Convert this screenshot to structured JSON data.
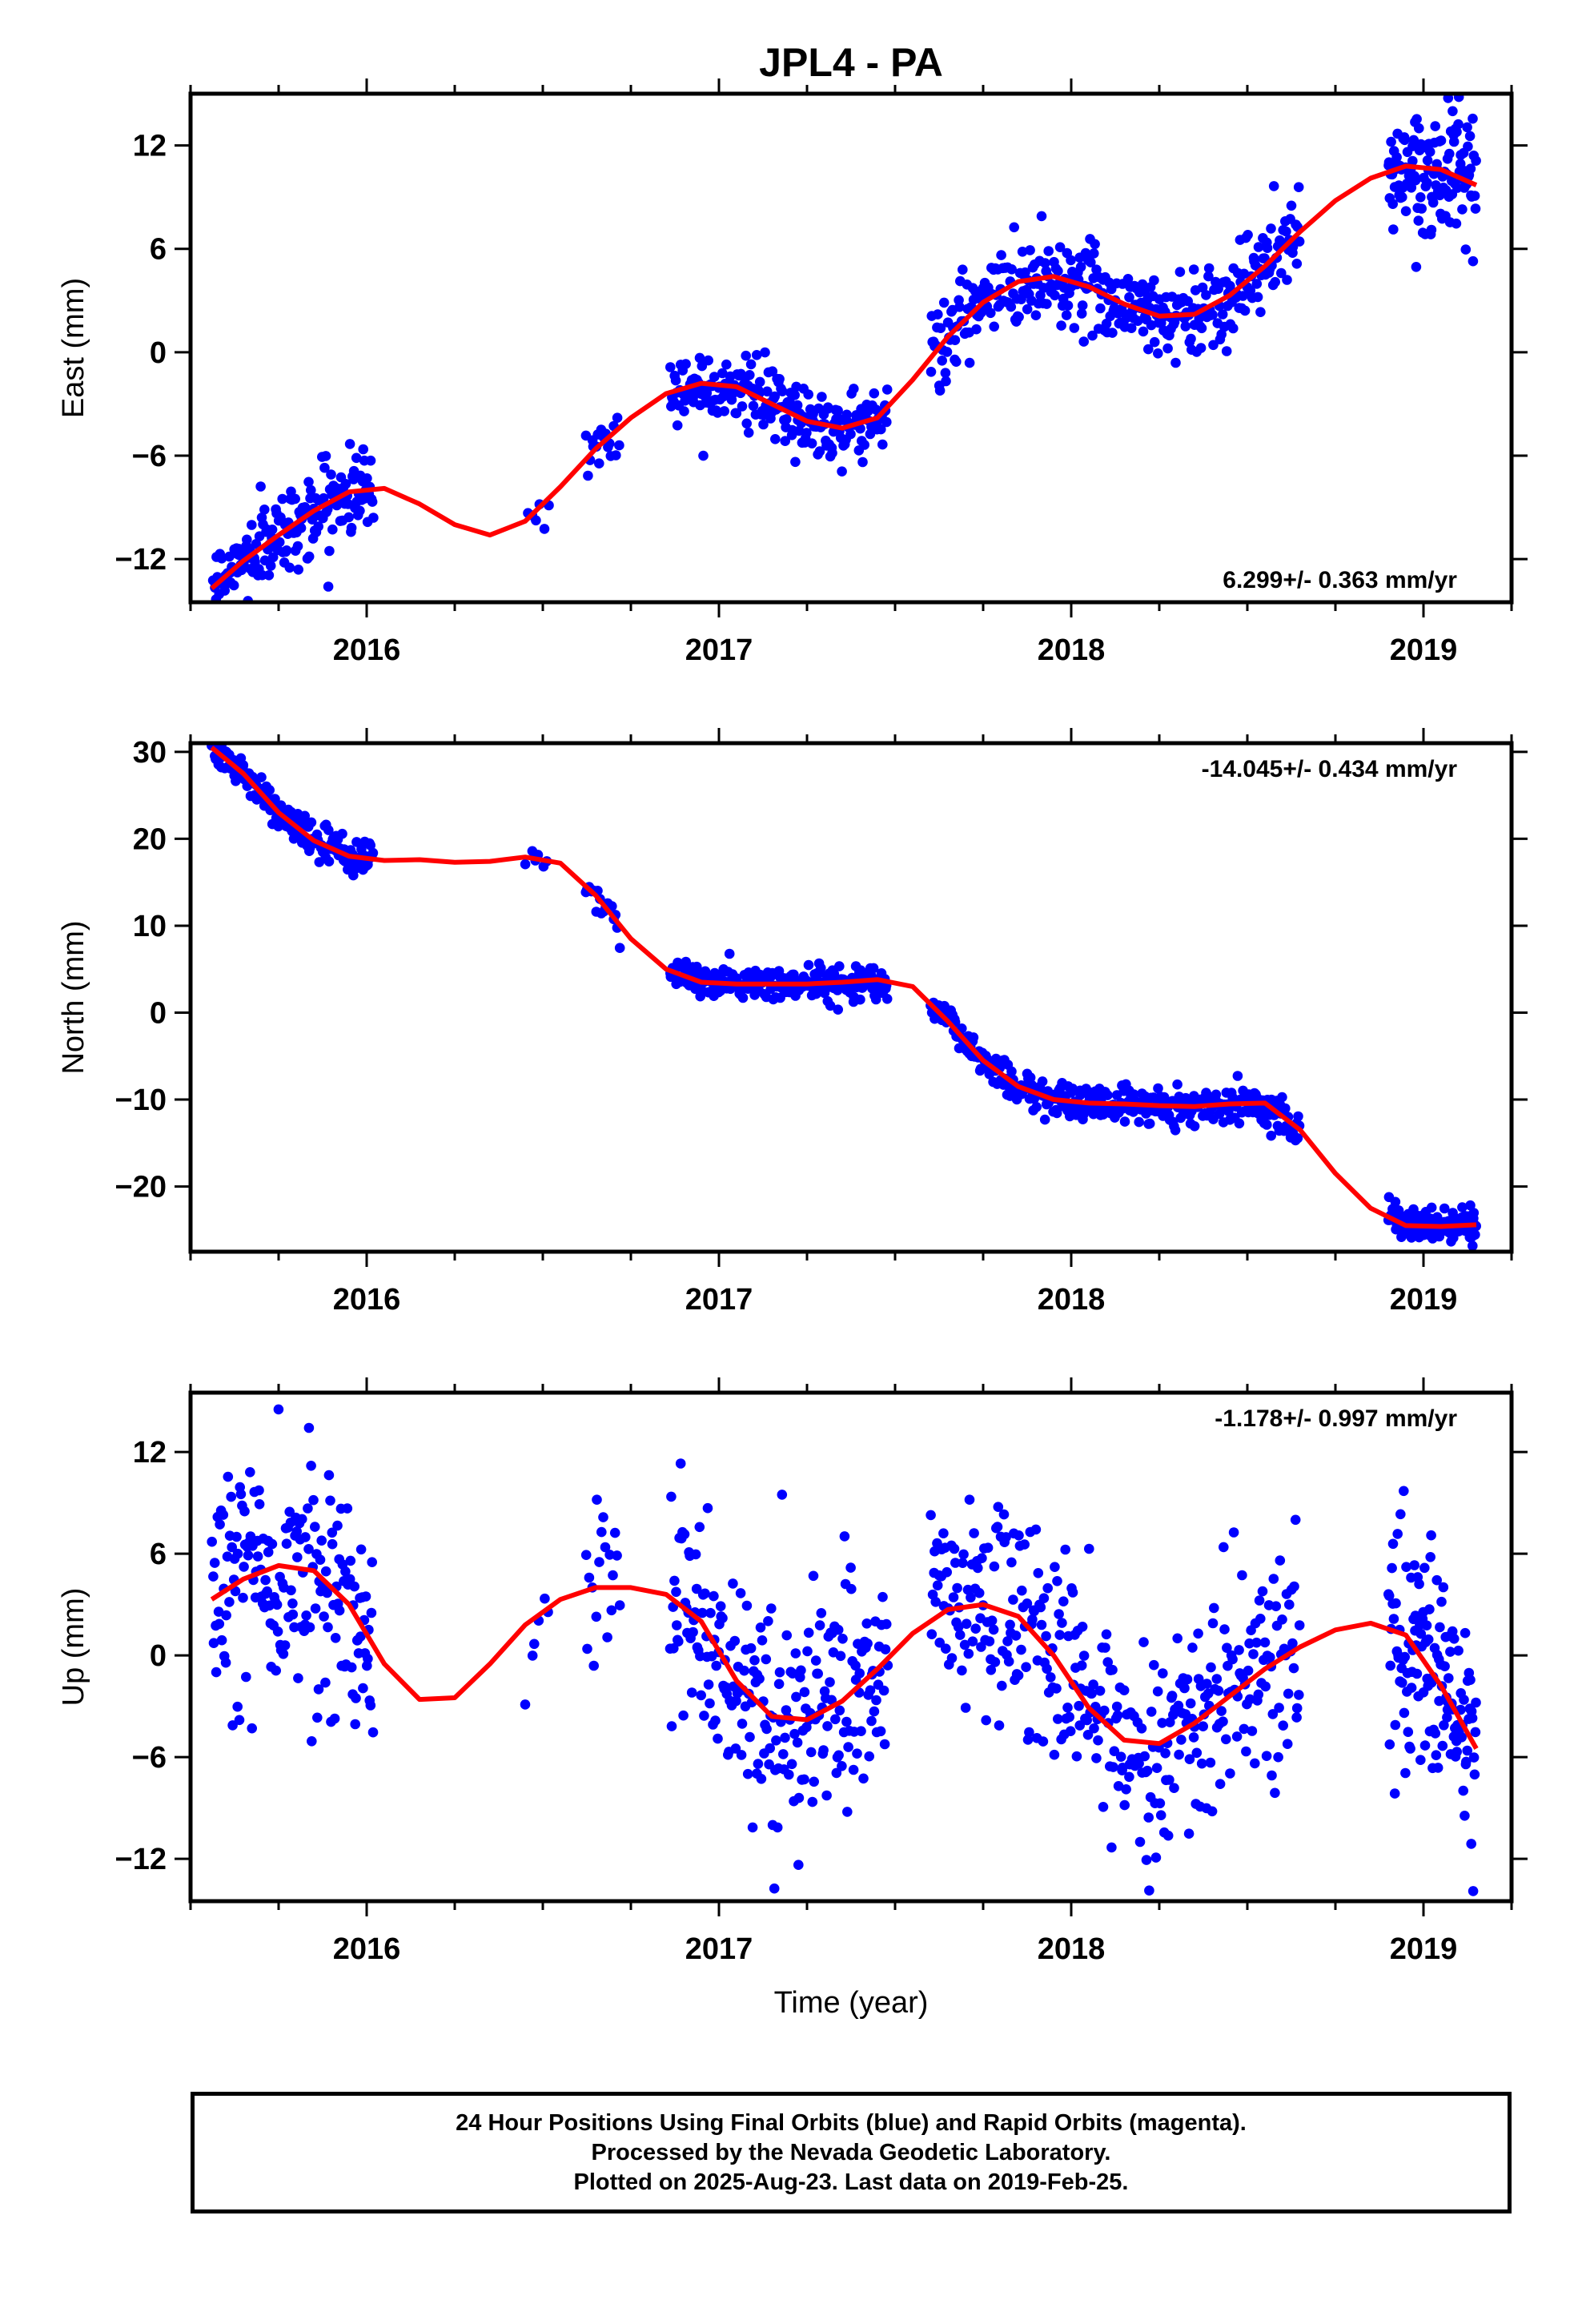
{
  "title": "JPL4 - PA",
  "xlabel": "Time (year)",
  "colors": {
    "final_orbits": "#0000ff",
    "model": "#ff0000",
    "frame": "#000000"
  },
  "footer": {
    "lines": [
      "24 Hour Positions Using Final Orbits (blue) and Rapid Orbits (magenta).",
      "Processed by the Nevada Geodetic Laboratory.",
      "Plotted on 2025-Aug-23. Last data on 2019-Feb-25."
    ]
  },
  "chart_data": [
    {
      "type": "scatter",
      "component": "east",
      "ylabel": "East (mm)",
      "xlim": [
        2015.5,
        2019.25
      ],
      "ylim": [
        -14.5,
        15
      ],
      "xticks": [
        2016,
        2017,
        2018,
        2019
      ],
      "yticks": [
        -12,
        -6,
        0,
        6,
        12
      ],
      "rate_label": "6.299+/- 0.363 mm/yr",
      "model_curve": {
        "x": [
          2015.56,
          2015.65,
          2015.75,
          2015.85,
          2015.95,
          2016.05,
          2016.15,
          2016.25,
          2016.35,
          2016.45,
          2016.55,
          2016.65,
          2016.75,
          2016.85,
          2016.95,
          2017.05,
          2017.15,
          2017.25,
          2017.35,
          2017.45,
          2017.55,
          2017.65,
          2017.75,
          2017.85,
          2017.95,
          2018.05,
          2018.15,
          2018.25,
          2018.35,
          2018.45,
          2018.55,
          2018.65,
          2018.75,
          2018.85,
          2018.95,
          2019.05,
          2019.15
        ],
        "y": [
          -13.7,
          -12.1,
          -10.6,
          -9.2,
          -8.1,
          -7.9,
          -8.8,
          -10.0,
          -10.6,
          -9.8,
          -7.8,
          -5.6,
          -3.8,
          -2.4,
          -1.8,
          -2.0,
          -3.0,
          -4.0,
          -4.4,
          -3.8,
          -1.6,
          0.9,
          2.9,
          4.1,
          4.4,
          3.8,
          2.8,
          2.1,
          2.2,
          3.3,
          5.0,
          7.0,
          8.8,
          10.1,
          10.8,
          10.6,
          9.7
        ]
      },
      "segments": [
        {
          "x0": 2015.56,
          "x1": 2016.02,
          "spread": 1.2,
          "count": 180
        },
        {
          "x0": 2016.45,
          "x1": 2016.52,
          "spread": 0.8,
          "count": 6
        },
        {
          "x0": 2016.62,
          "x1": 2016.72,
          "spread": 0.9,
          "count": 18
        },
        {
          "x0": 2016.86,
          "x1": 2017.48,
          "spread": 1.0,
          "count": 230
        },
        {
          "x0": 2017.6,
          "x1": 2018.65,
          "spread": 1.3,
          "count": 360
        },
        {
          "x0": 2018.9,
          "x1": 2019.15,
          "spread": 1.5,
          "count": 130
        }
      ]
    },
    {
      "type": "scatter",
      "component": "north",
      "ylabel": "North (mm)",
      "xlim": [
        2015.5,
        2019.25
      ],
      "ylim": [
        -27.5,
        31
      ],
      "xticks": [
        2016,
        2017,
        2018,
        2019
      ],
      "yticks": [
        -20,
        -10,
        0,
        10,
        20,
        30
      ],
      "rate_label": "-14.045+/- 0.434 mm/yr",
      "model_curve": {
        "x": [
          2015.56,
          2015.65,
          2015.75,
          2015.85,
          2015.95,
          2016.05,
          2016.15,
          2016.25,
          2016.35,
          2016.45,
          2016.55,
          2016.65,
          2016.75,
          2016.85,
          2016.95,
          2017.05,
          2017.15,
          2017.25,
          2017.35,
          2017.45,
          2017.55,
          2017.65,
          2017.75,
          2017.85,
          2017.95,
          2018.05,
          2018.15,
          2018.25,
          2018.35,
          2018.45,
          2018.55,
          2018.65,
          2018.75,
          2018.85,
          2018.95,
          2019.05,
          2019.15
        ],
        "y": [
          30.5,
          27.5,
          23.0,
          19.8,
          18.0,
          17.5,
          17.6,
          17.3,
          17.4,
          17.9,
          17.2,
          13.5,
          8.5,
          5.0,
          3.5,
          3.3,
          3.3,
          3.3,
          3.5,
          3.8,
          3.0,
          -1.0,
          -5.5,
          -8.5,
          -10.0,
          -10.4,
          -10.5,
          -10.7,
          -10.8,
          -10.5,
          -10.4,
          -13.5,
          -18.5,
          -22.5,
          -24.5,
          -24.6,
          -24.4
        ]
      },
      "segments": [
        {
          "x0": 2015.56,
          "x1": 2016.02,
          "spread": 1.0,
          "count": 180
        },
        {
          "x0": 2016.45,
          "x1": 2016.52,
          "spread": 0.8,
          "count": 6
        },
        {
          "x0": 2016.62,
          "x1": 2016.72,
          "spread": 1.0,
          "count": 18
        },
        {
          "x0": 2016.86,
          "x1": 2017.48,
          "spread": 1.0,
          "count": 230
        },
        {
          "x0": 2017.6,
          "x1": 2018.65,
          "spread": 1.0,
          "count": 360
        },
        {
          "x0": 2018.9,
          "x1": 2019.15,
          "spread": 0.9,
          "count": 130
        }
      ]
    },
    {
      "type": "scatter",
      "component": "up",
      "ylabel": "Up (mm)",
      "xlim": [
        2015.5,
        2019.25
      ],
      "ylim": [
        -14.5,
        15.5
      ],
      "xticks": [
        2016,
        2017,
        2018,
        2019
      ],
      "yticks": [
        -12,
        -6,
        0,
        6,
        12
      ],
      "rate_label": "-1.178+/- 0.997 mm/yr",
      "model_curve": {
        "x": [
          2015.56,
          2015.65,
          2015.75,
          2015.85,
          2015.95,
          2016.05,
          2016.15,
          2016.25,
          2016.35,
          2016.45,
          2016.55,
          2016.65,
          2016.75,
          2016.85,
          2016.95,
          2017.05,
          2017.15,
          2017.25,
          2017.35,
          2017.45,
          2017.55,
          2017.65,
          2017.75,
          2017.85,
          2017.95,
          2018.05,
          2018.15,
          2018.25,
          2018.35,
          2018.45,
          2018.55,
          2018.65,
          2018.75,
          2018.85,
          2018.95,
          2019.05,
          2019.15
        ],
        "y": [
          3.3,
          4.5,
          5.3,
          5.0,
          3.0,
          -0.5,
          -2.6,
          -2.5,
          -0.5,
          1.8,
          3.3,
          4.0,
          4.0,
          3.6,
          2.0,
          -1.5,
          -3.6,
          -3.8,
          -2.7,
          -0.8,
          1.3,
          2.7,
          3.0,
          2.3,
          0.0,
          -3.1,
          -5.0,
          -5.2,
          -4.0,
          -2.4,
          -0.8,
          0.5,
          1.5,
          1.9,
          1.2,
          -1.8,
          -5.5
        ]
      },
      "segments": [
        {
          "x0": 2015.56,
          "x1": 2016.02,
          "spread": 3.5,
          "count": 180
        },
        {
          "x0": 2016.45,
          "x1": 2016.52,
          "spread": 3.0,
          "count": 6
        },
        {
          "x0": 2016.62,
          "x1": 2016.72,
          "spread": 3.0,
          "count": 18
        },
        {
          "x0": 2016.86,
          "x1": 2017.48,
          "spread": 3.5,
          "count": 230
        },
        {
          "x0": 2017.6,
          "x1": 2018.65,
          "spread": 3.3,
          "count": 360
        },
        {
          "x0": 2018.9,
          "x1": 2019.15,
          "spread": 3.3,
          "count": 130
        }
      ]
    }
  ]
}
